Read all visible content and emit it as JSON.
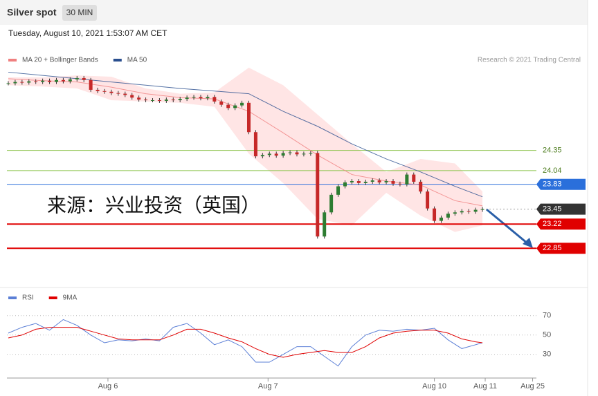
{
  "header": {
    "title": "Silver spot",
    "timeframe": "30 MIN",
    "date": "Tuesday, August 10, 2021 1:53:07 AM CET"
  },
  "watermark": "来源：兴业投资（英国）",
  "credit": "Research © 2021 Trading Central",
  "chart_data": [
    {
      "type": "candlestick",
      "legend": [
        {
          "name": "MA 20 + Bollinger Bands",
          "color": "#f08080"
        },
        {
          "name": "MA 50",
          "color": "#2a4f8f"
        }
      ],
      "xlim": [
        -0.2,
        76.85
      ],
      "ylim": [
        22.28,
        25.65
      ],
      "xticks": [
        {
          "value": 14.5,
          "label": "Aug 6"
        },
        {
          "value": 37.8,
          "label": "Aug 7"
        },
        {
          "value": 62,
          "label": "Aug 10"
        },
        {
          "value": 69.4,
          "label": "Aug 11"
        },
        {
          "value": 76.3,
          "label": "Aug 25"
        }
      ],
      "close": [
        25.38,
        25.4,
        25.39,
        25.41,
        25.4,
        25.42,
        25.4,
        25.43,
        25.41,
        25.44,
        25.46,
        25.43,
        25.28,
        25.26,
        25.25,
        25.23,
        25.22,
        25.2,
        25.16,
        25.13,
        25.12,
        25.12,
        25.11,
        25.13,
        25.12,
        25.14,
        25.16,
        25.17,
        25.15,
        25.17,
        25.1,
        25.05,
        25.0,
        25.04,
        25.08,
        24.63,
        24.26,
        24.28,
        24.3,
        24.27,
        24.31,
        24.32,
        24.29,
        24.3,
        24.31,
        23.03,
        23.4,
        23.67,
        23.8,
        23.86,
        23.88,
        23.85,
        23.87,
        23.89,
        23.86,
        23.88,
        23.84,
        23.83,
        23.98,
        23.87,
        23.72,
        23.46,
        23.27,
        23.32,
        23.38,
        23.4,
        23.42,
        23.41,
        23.44,
        23.45
      ],
      "up_color": "#2e7d32",
      "down_color": "#c62828",
      "ma_x": [
        0,
        5,
        10,
        15,
        20,
        25,
        30,
        35,
        40,
        45,
        50,
        55,
        60,
        65,
        69
      ],
      "ma50": [
        25.55,
        25.5,
        25.45,
        25.4,
        25.35,
        25.3,
        25.26,
        25.22,
        24.95,
        24.72,
        24.45,
        24.22,
        24.02,
        23.8,
        23.64
      ],
      "ma20": [
        25.45,
        25.42,
        25.4,
        25.32,
        25.22,
        25.16,
        25.14,
        24.95,
        24.62,
        24.28,
        23.98,
        23.88,
        23.82,
        23.58,
        23.5
      ],
      "bb_upper": [
        25.47,
        25.47,
        25.5,
        25.48,
        25.3,
        25.22,
        25.24,
        25.62,
        25.35,
        24.9,
        24.45,
        24.02,
        24.22,
        24.15,
        23.72
      ],
      "bb_lower": [
        25.35,
        25.33,
        25.3,
        25.12,
        25.1,
        25.08,
        25.02,
        24.3,
        23.85,
        23.3,
        23.2,
        23.7,
        23.35,
        23.1,
        23.2
      ],
      "levels": [
        {
          "value": 24.35,
          "color": "#8bc34a",
          "boxed": false
        },
        {
          "value": 24.04,
          "color": "#8bc34a",
          "boxed": false
        },
        {
          "value": 23.83,
          "color": "#2a6fdb",
          "boxed": true
        },
        {
          "value": 23.45,
          "color": "#333333",
          "boxed": true,
          "dotted": true
        },
        {
          "value": 23.22,
          "color": "#e00000",
          "boxed": true
        },
        {
          "value": 22.85,
          "color": "#e00000",
          "boxed": true
        }
      ]
    },
    {
      "type": "line",
      "legend": [
        {
          "name": "RSI",
          "color": "#5b7fd6"
        },
        {
          "name": "9MA",
          "color": "#e00000"
        }
      ],
      "ylim": [
        7,
        82
      ],
      "yticks": [
        30,
        50,
        70
      ],
      "x": [
        0,
        2,
        4,
        6,
        8,
        10,
        12,
        14,
        16,
        18,
        20,
        22,
        24,
        26,
        28,
        30,
        32,
        34,
        36,
        38,
        40,
        42,
        44,
        46,
        48,
        50,
        52,
        54,
        56,
        58,
        60,
        62,
        64,
        66,
        68,
        69
      ],
      "series": [
        {
          "name": "RSI",
          "color": "#5b7fd6",
          "values": [
            52,
            58,
            62,
            55,
            66,
            60,
            50,
            42,
            45,
            44,
            46,
            44,
            58,
            62,
            52,
            40,
            45,
            38,
            22,
            22,
            30,
            38,
            38,
            28,
            18,
            38,
            50,
            55,
            54,
            56,
            55,
            57,
            45,
            36,
            40,
            42
          ]
        },
        {
          "name": "9MA",
          "color": "#e00000",
          "values": [
            47,
            50,
            56,
            58,
            58,
            58,
            54,
            50,
            46,
            45,
            45,
            45,
            50,
            56,
            56,
            52,
            47,
            43,
            36,
            30,
            27,
            30,
            32,
            34,
            32,
            32,
            38,
            47,
            52,
            54,
            55,
            55,
            52,
            46,
            43,
            42
          ]
        }
      ]
    }
  ]
}
